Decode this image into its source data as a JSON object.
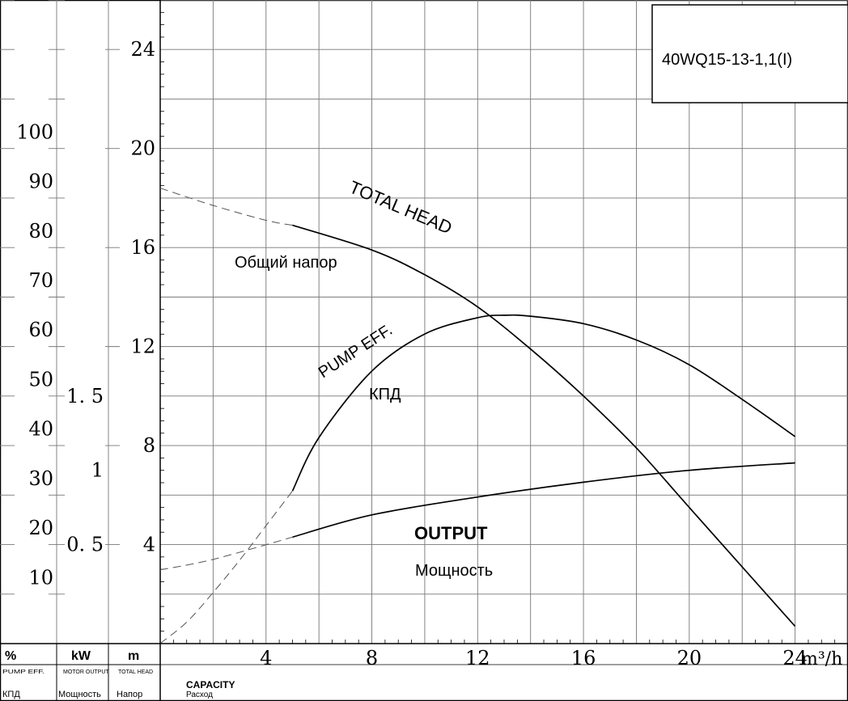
{
  "model_label": "40WQ15-13-1,1(I)",
  "curve_labels": {
    "head_en": "TOTAL HEAD",
    "head_ru": "Общий напор",
    "eff_en": "PUMP EFF.",
    "eff_ru": "КПД",
    "power_en": "OUTPUT",
    "power_ru": "Мощность"
  },
  "footer": {
    "pct_symbol": "%",
    "pct_en": "PUMP EFF.",
    "pct_ru": "КПД",
    "kw_symbol": "kW",
    "kw_en": "MOTOR OUTPUT",
    "kw_ru": "Мощность",
    "m_symbol": "m",
    "m_en": "TOTAL HEAD",
    "m_ru": "Напор",
    "capacity_en": "CAPACITY",
    "capacity_ru": "Расход",
    "flow_unit": "m³/h"
  },
  "colors": {
    "grid": "#777777",
    "ink": "#000000"
  },
  "chart_data": {
    "type": "line",
    "x_label": "CAPACITY",
    "x_unit": "m³/h",
    "x_ticks": [
      4,
      8,
      12,
      16,
      20,
      24
    ],
    "xlim": [
      0,
      26
    ],
    "y_axes": [
      {
        "unit": "m",
        "label": "TOTAL HEAD",
        "ticks": [
          4,
          8,
          12,
          16,
          20,
          24
        ],
        "ylim": [
          0,
          26
        ]
      },
      {
        "unit": "%",
        "label": "PUMP EFF.",
        "ticks": [
          10,
          20,
          30,
          40,
          50,
          60,
          70,
          80,
          90,
          100
        ],
        "ylim": [
          -3.33,
          126.67
        ]
      },
      {
        "unit": "kW",
        "label": "MOTOR OUTPUT",
        "ticks": [
          0.5,
          1,
          1.5
        ],
        "ylim": [
          -0.167,
          4.167
        ]
      }
    ],
    "grid": true,
    "series": [
      {
        "name": "TOTAL HEAD",
        "axis": "m",
        "solid": [
          [
            5,
            16.9
          ],
          [
            8,
            15.9
          ],
          [
            10,
            14.9
          ],
          [
            12,
            13.6
          ],
          [
            14,
            11.9
          ],
          [
            16,
            10.0
          ],
          [
            18,
            7.9
          ],
          [
            20,
            5.5
          ],
          [
            24,
            0.7
          ]
        ],
        "dashed": [
          [
            0,
            18.4
          ],
          [
            2,
            17.7
          ],
          [
            4,
            17.1
          ],
          [
            5,
            16.9
          ]
        ]
      },
      {
        "name": "PUMP EFF.",
        "axis": "%",
        "solid": [
          [
            5,
            27.5
          ],
          [
            6,
            38.3
          ],
          [
            8,
            51.7
          ],
          [
            10,
            59.2
          ],
          [
            12,
            62.5
          ],
          [
            13,
            63.0
          ],
          [
            14,
            62.8
          ],
          [
            16,
            61.3
          ],
          [
            18,
            58.0
          ],
          [
            20,
            53.0
          ],
          [
            22,
            46.0
          ],
          [
            24,
            38.5
          ]
        ],
        "dashed": [
          [
            0,
            -3.3
          ],
          [
            1,
            1.0
          ],
          [
            2,
            7.0
          ],
          [
            3,
            13.5
          ],
          [
            4,
            20.5
          ],
          [
            5,
            27.5
          ]
        ]
      },
      {
        "name": "OUTPUT",
        "axis": "kW",
        "solid": [
          [
            5,
            0.55
          ],
          [
            8,
            0.7
          ],
          [
            12,
            0.82
          ],
          [
            16,
            0.92
          ],
          [
            20,
            1.0
          ],
          [
            24,
            1.05
          ]
        ],
        "dashed": [
          [
            0,
            0.33
          ],
          [
            2,
            0.4
          ],
          [
            5,
            0.55
          ]
        ]
      }
    ]
  }
}
